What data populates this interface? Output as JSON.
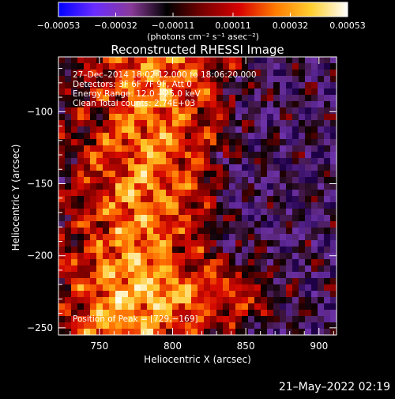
{
  "chart_data": {
    "type": "heatmap",
    "title": "Reconstructed RHESSI Image",
    "xlabel": "Heliocentric X (arcsec)",
    "ylabel": "Heliocentric Y (arcsec)",
    "xlim": [
      722,
      912
    ],
    "ylim": [
      -255,
      -62
    ],
    "x_ticks": [
      "750",
      "800",
      "850",
      "900"
    ],
    "x_tick_values": [
      750,
      800,
      850,
      900
    ],
    "y_ticks": [
      "−100",
      "−150",
      "−200",
      "−250"
    ],
    "y_tick_values": [
      -100,
      -150,
      -200,
      -250
    ],
    "colorbar": {
      "range": [
        -0.00053,
        0.00053
      ],
      "ticks": [
        "−0.00053",
        "−0.00032",
        "−0.00011",
        "0.00011",
        "0.00032",
        "0.00053"
      ],
      "tick_values": [
        -0.00053,
        -0.00032,
        -0.00011,
        0.00011,
        0.00032,
        0.00053
      ],
      "units": "(photons cm⁻² s⁻¹ asec⁻²)",
      "colors": [
        "#0000ff",
        "#6a2cff",
        "#8a3a9a",
        "#000000",
        "#7a0000",
        "#d80000",
        "#ff7a00",
        "#ffd030",
        "#ffffff"
      ]
    },
    "info_lines": [
      "27–Dec–2014 18:02:12.000 to 18:06:20.000",
      "Detectors: 3F 6F 7F 9F, Att 0",
      "Energy Range: 12.0 – 25.0 keV",
      "Clean     Total counts: 2.74E+03"
    ],
    "peak_label": "Position of Peak = [729,−169]",
    "grid": false
  },
  "footer": {
    "timestamp": "21–May–2022 02:19"
  }
}
